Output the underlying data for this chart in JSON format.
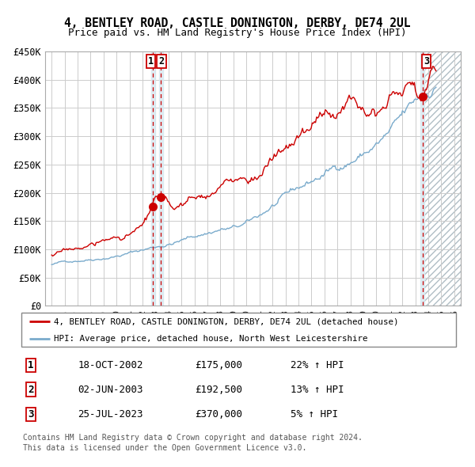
{
  "title": "4, BENTLEY ROAD, CASTLE DONINGTON, DERBY, DE74 2UL",
  "subtitle": "Price paid vs. HM Land Registry's House Price Index (HPI)",
  "red_label": "4, BENTLEY ROAD, CASTLE DONINGTON, DERBY, DE74 2UL (detached house)",
  "blue_label": "HPI: Average price, detached house, North West Leicestershire",
  "footnote1": "Contains HM Land Registry data © Crown copyright and database right 2024.",
  "footnote2": "This data is licensed under the Open Government Licence v3.0.",
  "transactions": [
    {
      "num": 1,
      "date": "18-OCT-2002",
      "price": "£175,000",
      "hpi": "22% ↑ HPI",
      "year": 2002.8,
      "y_val": 175000
    },
    {
      "num": 2,
      "date": "02-JUN-2003",
      "price": "£192,500",
      "hpi": "13% ↑ HPI",
      "year": 2003.42,
      "y_val": 192500
    },
    {
      "num": 3,
      "date": "25-JUL-2023",
      "price": "£370,000",
      "hpi": "5% ↑ HPI",
      "year": 2023.56,
      "y_val": 370000
    }
  ],
  "ylim": [
    0,
    450000
  ],
  "xlim_start": 1994.5,
  "xlim_end": 2026.5,
  "hatch_start": 2023.6,
  "yticks": [
    0,
    50000,
    100000,
    150000,
    200000,
    250000,
    300000,
    350000,
    400000,
    450000
  ],
  "ytick_labels": [
    "£0",
    "£50K",
    "£100K",
    "£150K",
    "£200K",
    "£250K",
    "£300K",
    "£350K",
    "£400K",
    "£450K"
  ],
  "xticks": [
    1995,
    1996,
    1997,
    1998,
    1999,
    2000,
    2001,
    2002,
    2003,
    2004,
    2005,
    2006,
    2007,
    2008,
    2009,
    2010,
    2011,
    2012,
    2013,
    2014,
    2015,
    2016,
    2017,
    2018,
    2019,
    2020,
    2021,
    2022,
    2023,
    2024,
    2025,
    2026
  ],
  "red_color": "#cc0000",
  "blue_color": "#7aabcc",
  "vband_color": "#d8e8f0",
  "hatch_color": "#d0d8e0",
  "grid_color": "#cccccc",
  "bg_color": "#ffffff"
}
